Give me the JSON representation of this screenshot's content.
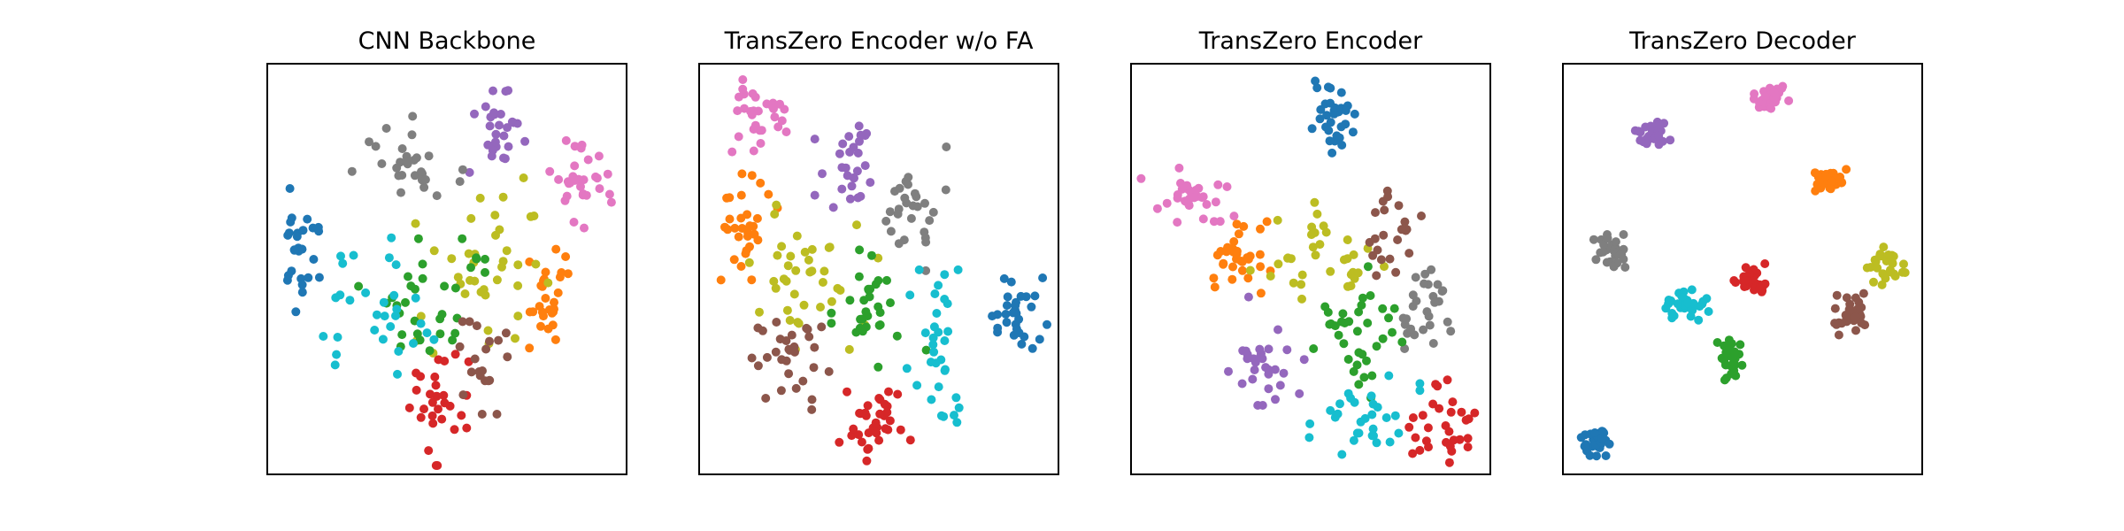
{
  "figure": {
    "palette": {
      "blue": "#1f77b4",
      "orange": "#ff7f0e",
      "green": "#2ca02c",
      "red": "#d62728",
      "purple": "#9467bd",
      "brown": "#8c564b",
      "pink": "#e377c2",
      "gray": "#7f7f7f",
      "olive": "#bcbd22",
      "cyan": "#17becf"
    },
    "marker": "filled circle",
    "axes": "hidden ticks, boxed frame"
  },
  "chart_data": [
    {
      "type": "scatter",
      "title": "CNN Backbone",
      "xlabel": "",
      "ylabel": "",
      "xlim": [
        0,
        100
      ],
      "ylim": [
        0,
        100
      ],
      "grid": false,
      "legend": "none",
      "clusters": [
        {
          "color": "blue",
          "center": [
            9,
            55
          ],
          "spread": [
            2.5,
            7
          ],
          "count": 28
        },
        {
          "color": "pink",
          "center": [
            87,
            71
          ],
          "spread": [
            4,
            5
          ],
          "count": 30
        },
        {
          "color": "purple",
          "center": [
            64,
            86
          ],
          "spread": [
            3.5,
            7
          ],
          "count": 28
        },
        {
          "color": "gray",
          "center": [
            39,
            74
          ],
          "spread": [
            7,
            6
          ],
          "count": 28
        },
        {
          "color": "orange",
          "center": [
            78,
            42
          ],
          "spread": [
            3,
            6
          ],
          "count": 28
        },
        {
          "color": "olive",
          "center": [
            60,
            48
          ],
          "spread": [
            9,
            11
          ],
          "count": 38
        },
        {
          "color": "green",
          "center": [
            43,
            42
          ],
          "spread": [
            8,
            7
          ],
          "count": 32
        },
        {
          "color": "cyan",
          "center": [
            31,
            40
          ],
          "spread": [
            7,
            8
          ],
          "count": 30
        },
        {
          "color": "red",
          "center": [
            46,
            17
          ],
          "spread": [
            5,
            7
          ],
          "count": 30
        },
        {
          "color": "brown",
          "center": [
            61,
            24
          ],
          "spread": [
            4,
            6
          ],
          "count": 20
        }
      ]
    },
    {
      "type": "scatter",
      "title": "TransZero Encoder w/o FA",
      "xlabel": "",
      "ylabel": "",
      "xlim": [
        0,
        100
      ],
      "ylim": [
        0,
        100
      ],
      "grid": false,
      "legend": "none",
      "clusters": [
        {
          "color": "pink",
          "center": [
            17,
            87
          ],
          "spread": [
            4,
            5
          ],
          "count": 30
        },
        {
          "color": "purple",
          "center": [
            41,
            76
          ],
          "spread": [
            4,
            5
          ],
          "count": 28
        },
        {
          "color": "gray",
          "center": [
            60,
            65
          ],
          "spread": [
            4,
            7
          ],
          "count": 28
        },
        {
          "color": "orange",
          "center": [
            13,
            60
          ],
          "spread": [
            4,
            6
          ],
          "count": 30
        },
        {
          "color": "olive",
          "center": [
            30,
            48
          ],
          "spread": [
            9,
            8
          ],
          "count": 38
        },
        {
          "color": "green",
          "center": [
            50,
            40
          ],
          "spread": [
            6,
            7
          ],
          "count": 30
        },
        {
          "color": "brown",
          "center": [
            25,
            28
          ],
          "spread": [
            6,
            7
          ],
          "count": 30
        },
        {
          "color": "blue",
          "center": [
            88,
            39
          ],
          "spread": [
            4,
            5
          ],
          "count": 30
        },
        {
          "color": "cyan",
          "center": [
            66,
            30
          ],
          "spread": [
            4,
            9
          ],
          "count": 32
        },
        {
          "color": "red",
          "center": [
            50,
            13
          ],
          "spread": [
            5,
            5
          ],
          "count": 34
        }
      ]
    },
    {
      "type": "scatter",
      "title": "TransZero Encoder",
      "xlabel": "",
      "ylabel": "",
      "xlim": [
        0,
        100
      ],
      "ylim": [
        0,
        100
      ],
      "grid": false,
      "legend": "none",
      "clusters": [
        {
          "color": "blue",
          "center": [
            57,
            87
          ],
          "spread": [
            3,
            4
          ],
          "count": 32
        },
        {
          "color": "pink",
          "center": [
            16,
            68
          ],
          "spread": [
            6,
            3
          ],
          "count": 30
        },
        {
          "color": "orange",
          "center": [
            30,
            53
          ],
          "spread": [
            4,
            5
          ],
          "count": 32
        },
        {
          "color": "olive",
          "center": [
            53,
            53
          ],
          "spread": [
            9,
            6
          ],
          "count": 34
        },
        {
          "color": "brown",
          "center": [
            72,
            58
          ],
          "spread": [
            4,
            5
          ],
          "count": 22
        },
        {
          "color": "gray",
          "center": [
            82,
            41
          ],
          "spread": [
            5,
            5
          ],
          "count": 28
        },
        {
          "color": "green",
          "center": [
            64,
            33
          ],
          "spread": [
            6,
            8
          ],
          "count": 36
        },
        {
          "color": "purple",
          "center": [
            35,
            30
          ],
          "spread": [
            6,
            6
          ],
          "count": 30
        },
        {
          "color": "cyan",
          "center": [
            65,
            14
          ],
          "spread": [
            7,
            5
          ],
          "count": 30
        },
        {
          "color": "red",
          "center": [
            88,
            12
          ],
          "spread": [
            5,
            5
          ],
          "count": 30
        }
      ]
    },
    {
      "type": "scatter",
      "title": "TransZero Decoder",
      "xlabel": "",
      "ylabel": "",
      "xlim": [
        0,
        100
      ],
      "ylim": [
        0,
        100
      ],
      "grid": false,
      "legend": "none",
      "clusters": [
        {
          "color": "pink",
          "center": [
            58,
            92
          ],
          "spread": [
            2.2,
            1.6
          ],
          "count": 30
        },
        {
          "color": "purple",
          "center": [
            25,
            83
          ],
          "spread": [
            2.2,
            1.6
          ],
          "count": 30
        },
        {
          "color": "orange",
          "center": [
            74,
            72
          ],
          "spread": [
            2.2,
            1.6
          ],
          "count": 30
        },
        {
          "color": "gray",
          "center": [
            13,
            54
          ],
          "spread": [
            2,
            2
          ],
          "count": 30
        },
        {
          "color": "olive",
          "center": [
            91,
            50
          ],
          "spread": [
            3,
            2.5
          ],
          "count": 30
        },
        {
          "color": "red",
          "center": [
            52,
            47
          ],
          "spread": [
            2,
            2
          ],
          "count": 34
        },
        {
          "color": "cyan",
          "center": [
            34,
            41
          ],
          "spread": [
            3,
            1.8
          ],
          "count": 32
        },
        {
          "color": "brown",
          "center": [
            80,
            39
          ],
          "spread": [
            2.5,
            2.3
          ],
          "count": 30
        },
        {
          "color": "green",
          "center": [
            46,
            28
          ],
          "spread": [
            1.8,
            2.5
          ],
          "count": 30
        },
        {
          "color": "blue",
          "center": [
            9,
            7
          ],
          "spread": [
            1.8,
            2
          ],
          "count": 30
        }
      ]
    }
  ]
}
